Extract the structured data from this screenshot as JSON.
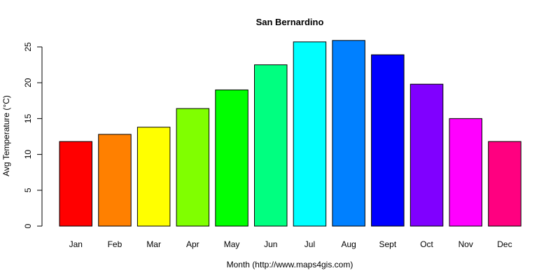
{
  "chart_data": {
    "type": "bar",
    "title": "San Bernardino",
    "xlabel": "Month (http://www.maps4gis.com)",
    "ylabel": "Avg Temperature (°C)",
    "categories": [
      "Jan",
      "Feb",
      "Mar",
      "Apr",
      "May",
      "Jun",
      "Jul",
      "Aug",
      "Sept",
      "Oct",
      "Nov",
      "Dec"
    ],
    "values": [
      11.8,
      12.8,
      13.8,
      16.4,
      19.0,
      22.5,
      25.7,
      25.9,
      23.9,
      19.8,
      15.0,
      11.8
    ],
    "colors": [
      "#FF0000",
      "#FF8000",
      "#FFFF00",
      "#80FF00",
      "#00FF00",
      "#00FF80",
      "#00FFFF",
      "#0080FF",
      "#0000FF",
      "#8000FF",
      "#FF00FF",
      "#FF0080"
    ],
    "ylim": [
      0,
      25
    ],
    "yticks": [
      0,
      5,
      10,
      15,
      20,
      25
    ],
    "grid": false,
    "legend": "none"
  }
}
